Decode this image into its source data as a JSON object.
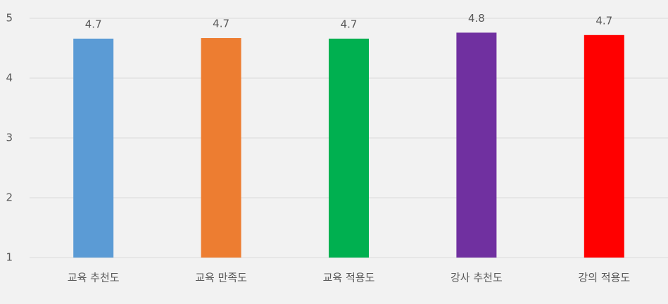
{
  "chart_data": {
    "type": "bar",
    "categories": [
      "교육 추천도",
      "교육 만족도",
      "교육 적용도",
      "강사 추천도",
      "강의 적용도"
    ],
    "values": [
      4.66,
      4.67,
      4.66,
      4.76,
      4.72
    ],
    "value_labels": [
      "4.7",
      "4.7",
      "4.7",
      "4.8",
      "4.7"
    ],
    "colors": [
      "#5b9bd5",
      "#ed7d31",
      "#00b050",
      "#7030a0",
      "#ff0000"
    ],
    "ylim": [
      1,
      5
    ],
    "yticks": [
      1,
      2,
      3,
      4,
      5
    ],
    "grid": true
  }
}
